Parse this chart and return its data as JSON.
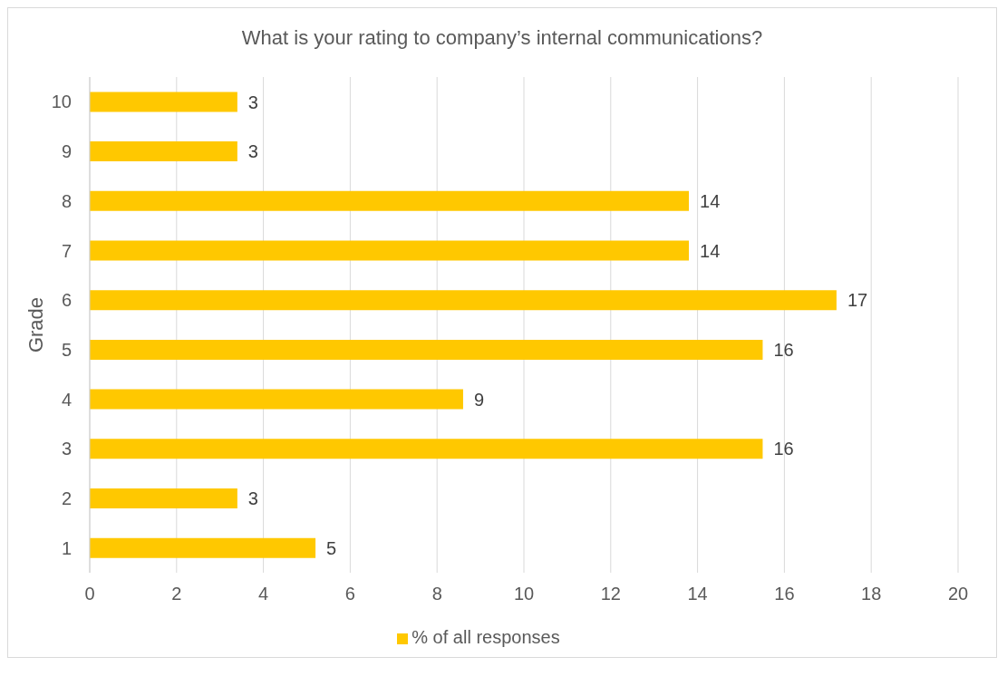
{
  "chart_data": {
    "type": "bar",
    "orientation": "horizontal",
    "title": "What is your rating to company’s internal communications?",
    "ylabel": "Grade",
    "categories": [
      "10",
      "9",
      "8",
      "7",
      "6",
      "5",
      "4",
      "3",
      "2",
      "1"
    ],
    "series": [
      {
        "name": "% of all responses",
        "color": "#ffc800",
        "values": [
          3.4,
          3.4,
          13.8,
          13.8,
          17.2,
          15.5,
          8.6,
          15.5,
          3.4,
          5.2
        ],
        "value_labels": [
          "3",
          "3",
          "14",
          "14",
          "17",
          "16",
          "9",
          "16",
          "3",
          "5"
        ]
      }
    ],
    "xlim": [
      0,
      20
    ],
    "xticks": [
      0,
      2,
      4,
      6,
      8,
      10,
      12,
      14,
      16,
      18,
      20
    ],
    "grid": "x",
    "legend": "bottom"
  }
}
